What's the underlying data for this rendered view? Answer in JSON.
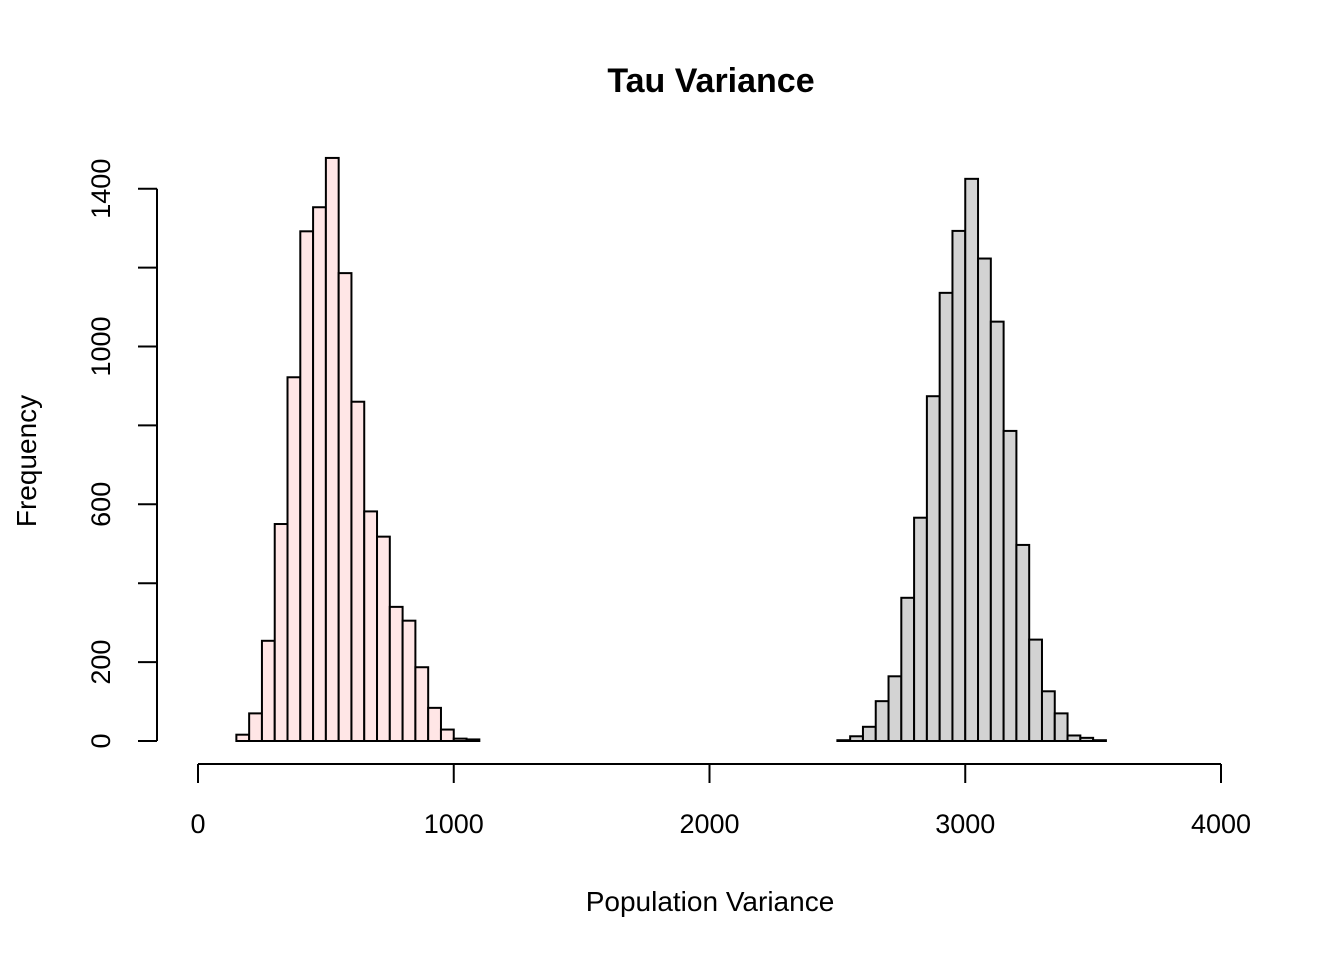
{
  "chart_data": {
    "type": "histogram",
    "title": "Tau Variance",
    "xlabel": "Population Variance",
    "ylabel": "Frequency",
    "xlim": [
      0,
      4000
    ],
    "ylim": [
      0,
      1480
    ],
    "x_ticks": [
      "0",
      "1000",
      "2000",
      "3000",
      "4000"
    ],
    "y_ticks": [
      "0",
      "200",
      "600",
      "1000",
      "1400"
    ],
    "y_tick_marks": [
      0,
      200,
      400,
      600,
      800,
      1000,
      1200,
      1400
    ],
    "grid": false,
    "series": [
      {
        "fill": "#ffe6e6",
        "bin_start": 150,
        "bin_width": 50,
        "values": [
          16,
          70,
          254,
          550,
          922,
          1292,
          1353,
          1478,
          1186,
          860,
          582,
          518,
          340,
          305,
          187,
          84,
          29,
          6,
          4
        ]
      },
      {
        "fill": "#d3d3d3",
        "bin_start": 2400,
        "bin_width": 50,
        "values": [
          0,
          0,
          2,
          12,
          36,
          101,
          164,
          363,
          566,
          874,
          1136,
          1293,
          1425,
          1223,
          1063,
          786,
          497,
          257,
          126,
          70,
          14,
          8,
          2,
          0,
          0,
          0
        ]
      }
    ]
  }
}
